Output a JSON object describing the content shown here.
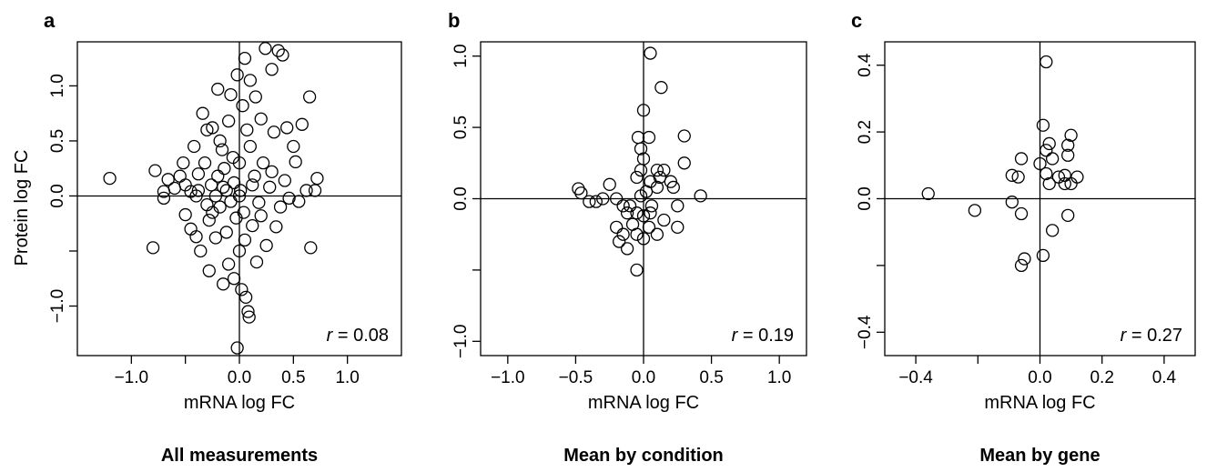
{
  "panels": [
    {
      "letter": "a",
      "caption": "All measurements",
      "xlabel": "mRNA log FC",
      "ylabel": "Protein log FC",
      "r_var": "r",
      "r_text": " = 0.08",
      "chart_data": {
        "type": "scatter",
        "xlim": [
          -1.5,
          1.5
        ],
        "ylim": [
          -1.45,
          1.4
        ],
        "xticks": [
          -1.0,
          -0.5,
          0.0,
          0.5,
          1.0
        ],
        "xtick_labels": [
          "−1.0",
          "",
          "0.0",
          "0.5",
          "1.0"
        ],
        "yticks": [
          -1.0,
          -0.5,
          0.0,
          0.5,
          1.0
        ],
        "ytick_labels": [
          "−1.0",
          "",
          "0.0",
          "0.5",
          "1.0"
        ],
        "reference_lines": {
          "x": 0,
          "y": 0
        },
        "points": [
          [
            -1.2,
            0.16
          ],
          [
            -0.78,
            0.23
          ],
          [
            -0.8,
            -0.47
          ],
          [
            -0.7,
            -0.02
          ],
          [
            -0.7,
            0.04
          ],
          [
            -0.66,
            0.15
          ],
          [
            -0.6,
            0.07
          ],
          [
            -0.55,
            0.18
          ],
          [
            -0.52,
            0.3
          ],
          [
            -0.5,
            0.1
          ],
          [
            -0.5,
            -0.17
          ],
          [
            -0.45,
            0.04
          ],
          [
            -0.45,
            -0.3
          ],
          [
            -0.4,
            0.0
          ],
          [
            -0.42,
            0.45
          ],
          [
            -0.4,
            -0.37
          ],
          [
            -0.38,
            0.05
          ],
          [
            -0.38,
            0.2
          ],
          [
            -0.36,
            -0.5
          ],
          [
            -0.34,
            0.75
          ],
          [
            -0.32,
            0.3
          ],
          [
            -0.3,
            -0.08
          ],
          [
            -0.3,
            0.6
          ],
          [
            -0.28,
            -0.68
          ],
          [
            -0.28,
            -0.22
          ],
          [
            -0.26,
            0.1
          ],
          [
            -0.25,
            0.62
          ],
          [
            -0.22,
            -0.38
          ],
          [
            -0.22,
            0.0
          ],
          [
            -0.2,
            0.18
          ],
          [
            -0.2,
            0.97
          ],
          [
            -0.18,
            0.5
          ],
          [
            -0.18,
            -0.1
          ],
          [
            -0.16,
            0.42
          ],
          [
            -0.15,
            -0.8
          ],
          [
            -0.14,
            0.25
          ],
          [
            -0.12,
            -0.33
          ],
          [
            -0.12,
            0.05
          ],
          [
            -0.1,
            0.68
          ],
          [
            -0.1,
            -0.62
          ],
          [
            -0.08,
            0.92
          ],
          [
            -0.06,
            0.35
          ],
          [
            -0.05,
            -0.75
          ],
          [
            -0.05,
            0.12
          ],
          [
            -0.03,
            -0.2
          ],
          [
            -0.02,
            1.1
          ],
          [
            0.0,
            -0.5
          ],
          [
            0.0,
            0.3
          ],
          [
            0.01,
            0.05
          ],
          [
            0.02,
            -0.85
          ],
          [
            0.03,
            0.82
          ],
          [
            0.05,
            -0.4
          ],
          [
            0.05,
            1.25
          ],
          [
            0.06,
            -0.92
          ],
          [
            0.07,
            0.6
          ],
          [
            0.08,
            -1.05
          ],
          [
            0.09,
            -1.1
          ],
          [
            0.1,
            1.05
          ],
          [
            0.1,
            0.45
          ],
          [
            0.12,
            -0.27
          ],
          [
            0.14,
            0.18
          ],
          [
            0.15,
            0.9
          ],
          [
            0.16,
            -0.6
          ],
          [
            0.18,
            -0.06
          ],
          [
            0.2,
            0.7
          ],
          [
            0.22,
            0.3
          ],
          [
            0.24,
            1.34
          ],
          [
            0.25,
            -0.45
          ],
          [
            0.28,
            0.08
          ],
          [
            0.3,
            1.15
          ],
          [
            0.32,
            0.58
          ],
          [
            0.34,
            -0.28
          ],
          [
            0.36,
            1.32
          ],
          [
            0.4,
            1.28
          ],
          [
            0.42,
            0.14
          ],
          [
            0.44,
            0.62
          ],
          [
            0.46,
            -0.02
          ],
          [
            0.5,
            0.45
          ],
          [
            0.52,
            0.31
          ],
          [
            0.55,
            -0.05
          ],
          [
            0.58,
            0.65
          ],
          [
            0.62,
            0.05
          ],
          [
            0.65,
            0.9
          ],
          [
            0.66,
            -0.47
          ],
          [
            0.7,
            0.05
          ],
          [
            0.72,
            0.16
          ],
          [
            -0.02,
            -1.38
          ],
          [
            0.0,
            0.0
          ],
          [
            0.04,
            -0.15
          ],
          [
            -0.08,
            -0.05
          ],
          [
            0.12,
            0.1
          ],
          [
            -0.15,
            0.08
          ],
          [
            0.2,
            -0.18
          ],
          [
            0.3,
            0.22
          ],
          [
            -0.25,
            -0.15
          ],
          [
            0.38,
            -0.1
          ]
        ]
      }
    },
    {
      "letter": "b",
      "caption": "Mean by condition",
      "xlabel": "mRNA log FC",
      "ylabel": "",
      "r_var": "r",
      "r_text": " = 0.19",
      "chart_data": {
        "type": "scatter",
        "xlim": [
          -1.2,
          1.2
        ],
        "ylim": [
          -1.1,
          1.1
        ],
        "xticks": [
          -1.0,
          -0.5,
          0.0,
          0.5,
          1.0
        ],
        "xtick_labels": [
          "−1.0",
          "−0.5",
          "0.0",
          "0.5",
          "1.0"
        ],
        "yticks": [
          -1.0,
          -0.5,
          0.0,
          0.5,
          1.0
        ],
        "ytick_labels": [
          "−1.0",
          "",
          "0.0",
          "0.5",
          "1.0"
        ],
        "reference_lines": {
          "x": 0,
          "y": 0
        },
        "points": [
          [
            0.05,
            1.02
          ],
          [
            0.13,
            0.78
          ],
          [
            0.0,
            0.62
          ],
          [
            0.3,
            0.44
          ],
          [
            -0.04,
            0.43
          ],
          [
            0.04,
            0.43
          ],
          [
            -0.02,
            0.35
          ],
          [
            0.0,
            0.28
          ],
          [
            0.3,
            0.25
          ],
          [
            -0.02,
            0.2
          ],
          [
            0.1,
            0.2
          ],
          [
            0.15,
            0.2
          ],
          [
            -0.05,
            0.15
          ],
          [
            0.05,
            0.12
          ],
          [
            0.2,
            0.12
          ],
          [
            0.22,
            0.08
          ],
          [
            0.1,
            0.08
          ],
          [
            -0.48,
            0.07
          ],
          [
            -0.46,
            0.04
          ],
          [
            -0.3,
            0.0
          ],
          [
            -0.35,
            -0.02
          ],
          [
            -0.4,
            -0.02
          ],
          [
            0.42,
            0.02
          ],
          [
            -0.2,
            0.0
          ],
          [
            -0.15,
            -0.05
          ],
          [
            -0.1,
            -0.05
          ],
          [
            -0.12,
            -0.1
          ],
          [
            -0.05,
            -0.1
          ],
          [
            0.0,
            -0.12
          ],
          [
            0.05,
            -0.1
          ],
          [
            -0.2,
            -0.2
          ],
          [
            -0.15,
            -0.25
          ],
          [
            -0.18,
            -0.3
          ],
          [
            -0.12,
            -0.35
          ],
          [
            -0.05,
            -0.25
          ],
          [
            0.0,
            -0.28
          ],
          [
            0.04,
            -0.2
          ],
          [
            0.1,
            -0.25
          ],
          [
            0.25,
            -0.2
          ],
          [
            0.25,
            -0.05
          ],
          [
            0.15,
            -0.15
          ],
          [
            -0.05,
            -0.5
          ],
          [
            -0.08,
            -0.18
          ],
          [
            0.02,
            0.05
          ],
          [
            -0.02,
            0.02
          ],
          [
            -0.25,
            0.1
          ],
          [
            0.12,
            0.15
          ],
          [
            0.06,
            -0.05
          ]
        ]
      }
    },
    {
      "letter": "c",
      "caption": "Mean by gene",
      "xlabel": "mRNA log FC",
      "ylabel": "",
      "r_var": "r",
      "r_text": " = 0.27",
      "chart_data": {
        "type": "scatter",
        "xlim": [
          -0.5,
          0.5
        ],
        "ylim": [
          -0.47,
          0.47
        ],
        "xticks": [
          -0.4,
          -0.2,
          0.0,
          0.2,
          0.4
        ],
        "xtick_labels": [
          "−0.4",
          "",
          "0.0",
          "0.2",
          "0.4"
        ],
        "yticks": [
          -0.4,
          -0.2,
          0.0,
          0.2,
          0.4
        ],
        "ytick_labels": [
          "−0.4",
          "",
          "0.0",
          "0.2",
          "0.4"
        ],
        "reference_lines": {
          "x": 0,
          "y": 0
        },
        "points": [
          [
            -0.36,
            0.015
          ],
          [
            -0.21,
            -0.035
          ],
          [
            -0.09,
            0.07
          ],
          [
            -0.07,
            0.065
          ],
          [
            -0.06,
            0.12
          ],
          [
            -0.09,
            -0.01
          ],
          [
            -0.06,
            -0.045
          ],
          [
            -0.06,
            -0.2
          ],
          [
            -0.05,
            -0.18
          ],
          [
            0.01,
            0.22
          ],
          [
            0.02,
            0.41
          ],
          [
            0.02,
            0.145
          ],
          [
            0.03,
            0.165
          ],
          [
            0.04,
            0.12
          ],
          [
            0.02,
            0.075
          ],
          [
            0.0,
            0.105
          ],
          [
            0.03,
            0.045
          ],
          [
            0.06,
            0.065
          ],
          [
            0.08,
            0.07
          ],
          [
            0.1,
            0.19
          ],
          [
            0.09,
            0.16
          ],
          [
            0.09,
            0.13
          ],
          [
            0.08,
            0.045
          ],
          [
            0.1,
            0.045
          ],
          [
            0.12,
            0.065
          ],
          [
            0.09,
            -0.05
          ],
          [
            0.04,
            -0.095
          ],
          [
            0.01,
            -0.17
          ]
        ]
      }
    }
  ]
}
